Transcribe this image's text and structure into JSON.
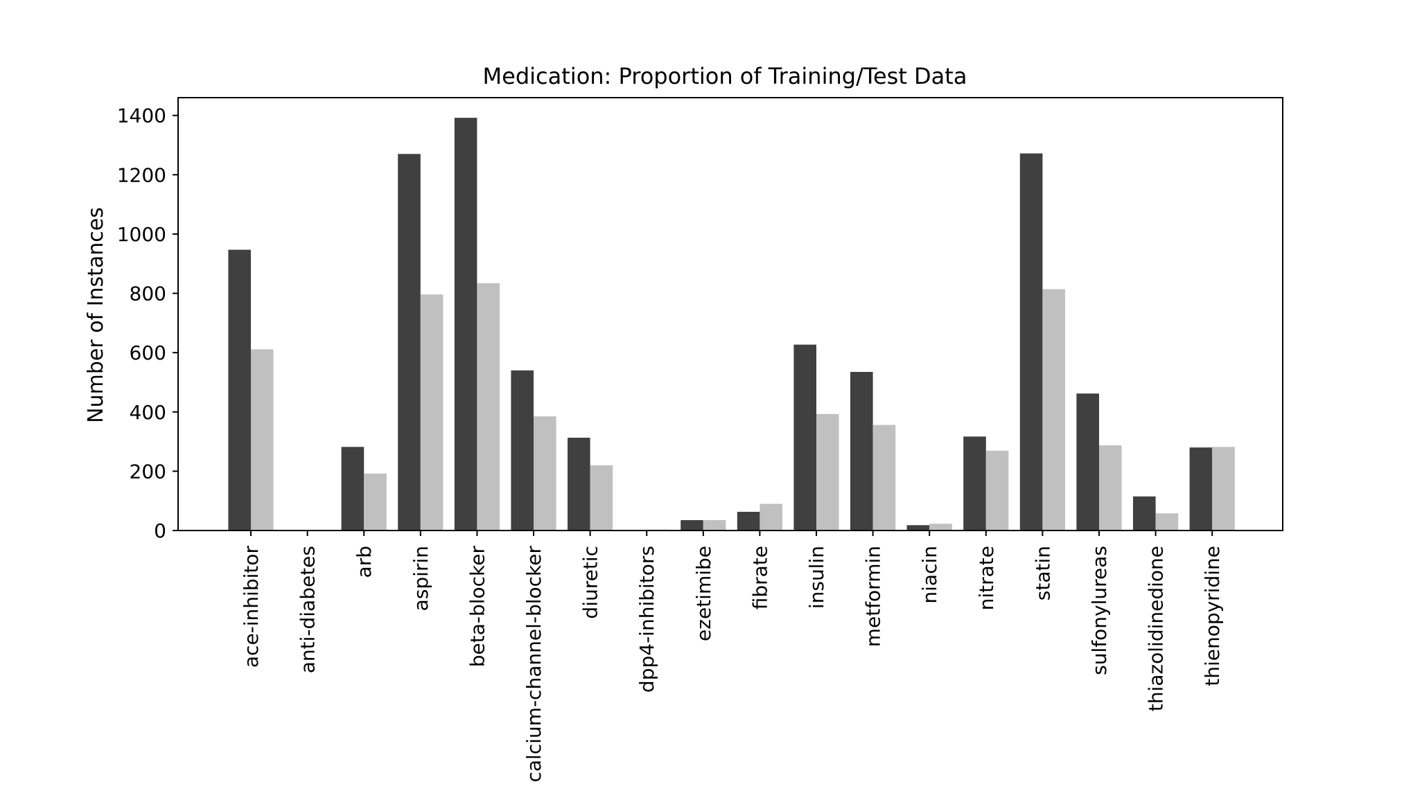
{
  "chart_data": {
    "type": "bar",
    "title": "Medication: Proportion of Training/Test Data",
    "xlabel": "",
    "ylabel": "Number of Instances",
    "ylim": [
      0,
      1460
    ],
    "yticks": [
      0,
      200,
      400,
      600,
      800,
      1000,
      1200,
      1400
    ],
    "grid": false,
    "legend": "none",
    "categories": [
      "ace-inhibitor",
      "anti-diabetes",
      "arb",
      "aspirin",
      "beta-blocker",
      "calcium-channel-blocker",
      "diuretic",
      "dpp4-inhibitors",
      "ezetimibe",
      "fibrate",
      "insulin",
      "metformin",
      "niacin",
      "nitrate",
      "statin",
      "sulfonylureas",
      "thiazolidinedione",
      "thienopyridine"
    ],
    "series": [
      {
        "color": "#404040",
        "values": [
          947,
          2,
          282,
          1270,
          1392,
          540,
          313,
          2,
          35,
          63,
          627,
          535,
          18,
          317,
          1272,
          462,
          115,
          280
        ]
      },
      {
        "color": "#c0c0c0",
        "values": [
          611,
          1,
          192,
          796,
          834,
          385,
          220,
          3,
          35,
          90,
          393,
          356,
          23,
          269,
          814,
          287,
          58,
          282
        ]
      }
    ]
  }
}
